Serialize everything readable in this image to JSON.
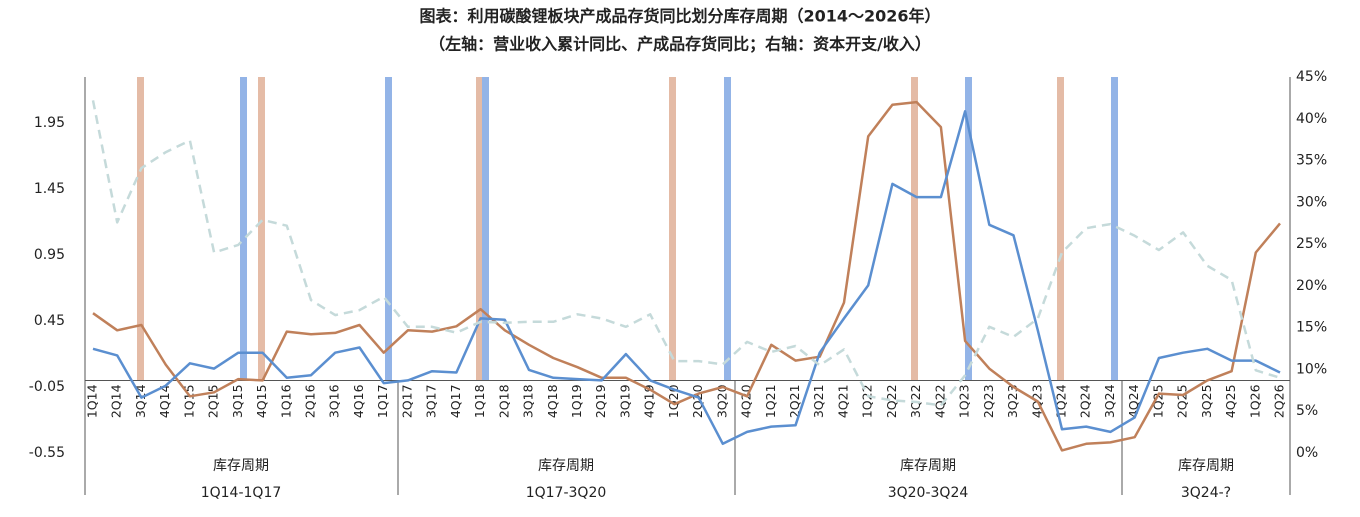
{
  "chart_data": {
    "type": "line",
    "title": "图表：利用碳酸锂板块产成品存货同比划分库存周期（2014～2026年）",
    "subtitle": "（左轴：营业收入累计同比、产成品存货同比；右轴：资本开支/收入）",
    "categories": [
      "1Q14",
      "2Q14",
      "3Q14",
      "4Q14",
      "1Q15",
      "2Q15",
      "3Q15",
      "4Q15",
      "1Q16",
      "2Q16",
      "3Q16",
      "4Q16",
      "1Q17",
      "2Q17",
      "3Q17",
      "4Q17",
      "1Q18",
      "2Q18",
      "3Q18",
      "4Q18",
      "1Q19",
      "2Q19",
      "3Q19",
      "4Q19",
      "1Q20",
      "2Q20",
      "3Q20",
      "4Q20",
      "1Q21",
      "2Q21",
      "3Q21",
      "4Q21",
      "1Q22",
      "2Q22",
      "3Q22",
      "4Q22",
      "1Q23",
      "2Q23",
      "3Q23",
      "4Q23",
      "1Q24",
      "2Q24",
      "3Q24",
      "4Q24",
      "1Q25",
      "2Q25",
      "3Q25",
      "4Q25",
      "1Q26",
      "2Q26"
    ],
    "series": [
      {
        "color": "#c0805a",
        "axis": "y",
        "values": [
          0.51,
          0.38,
          0.42,
          0.12,
          -0.12,
          -0.09,
          0.01,
          0.0,
          0.37,
          0.35,
          0.36,
          0.42,
          0.21,
          0.38,
          0.37,
          0.41,
          0.54,
          0.38,
          0.27,
          0.17,
          0.1,
          0.02,
          0.02,
          -0.07,
          -0.18,
          -0.1,
          -0.05,
          -0.12,
          0.27,
          0.15,
          0.18,
          0.59,
          1.85,
          2.09,
          2.11,
          1.92,
          0.3,
          0.09,
          -0.05,
          -0.16,
          -0.53,
          -0.48,
          -0.47,
          -0.43,
          -0.1,
          -0.11,
          0.0,
          0.07,
          0.97,
          1.19
        ]
      },
      {
        "color": "#5b8fd0",
        "axis": "y",
        "values": [
          0.24,
          0.19,
          -0.13,
          -0.04,
          0.13,
          0.09,
          0.21,
          0.21,
          0.02,
          0.04,
          0.21,
          0.25,
          -0.02,
          0.0,
          0.07,
          0.06,
          0.47,
          0.46,
          0.08,
          0.02,
          0.01,
          0.0,
          0.2,
          0.0,
          -0.07,
          -0.13,
          -0.48,
          -0.39,
          -0.35,
          -0.34,
          0.21,
          0.47,
          0.72,
          1.49,
          1.39,
          1.39,
          2.04,
          1.18,
          1.1,
          0.38,
          -0.37,
          -0.35,
          -0.39,
          -0.28,
          0.17,
          0.21,
          0.24,
          0.15,
          0.15,
          0.06
        ]
      },
      {
        "color": "#c5dada",
        "axis": "y2",
        "dashed": true,
        "values": [
          42.2,
          27.6,
          34.1,
          36.0,
          37.4,
          24.0,
          24.9,
          27.9,
          27.2,
          18.3,
          16.5,
          17.1,
          18.7,
          15.1,
          15.1,
          14.4,
          15.7,
          15.6,
          15.7,
          15.7,
          16.6,
          16.1,
          15.1,
          16.6,
          11.0,
          11.0,
          10.6,
          13.3,
          12.1,
          12.8,
          10.5,
          12.4,
          6.8,
          6.3,
          6.1,
          5.7,
          9.3,
          15.1,
          13.9,
          16.1,
          24.0,
          26.9,
          27.4,
          26.0,
          24.3,
          26.4,
          22.4,
          20.7,
          9.9,
          9.0
        ]
      }
    ],
    "ylim": [
      -0.55,
      2.3
    ],
    "yticks": [
      -0.55,
      -0.05,
      0.45,
      0.95,
      1.45,
      1.95
    ],
    "y2lim": [
      0,
      45
    ],
    "y2ticks": [
      {
        "value": 0,
        "label": "0%"
      },
      {
        "value": 5,
        "label": "5%"
      },
      {
        "value": 10,
        "label": "10%"
      },
      {
        "value": 15,
        "label": "15%"
      },
      {
        "value": 20,
        "label": "20%"
      },
      {
        "value": 25,
        "label": "25%"
      },
      {
        "value": 30,
        "label": "30%"
      },
      {
        "value": 35,
        "label": "35%"
      },
      {
        "value": 40,
        "label": "40%"
      },
      {
        "value": 45,
        "label": "45%"
      }
    ],
    "sections": [
      {
        "label": "库存周期",
        "range": "1Q14-1Q17"
      },
      {
        "label": "库存周期",
        "range": "1Q17-3Q20"
      },
      {
        "label": "库存周期",
        "range": "3Q20-3Q24"
      },
      {
        "label": "库存周期",
        "range": "3Q24-?"
      }
    ]
  }
}
